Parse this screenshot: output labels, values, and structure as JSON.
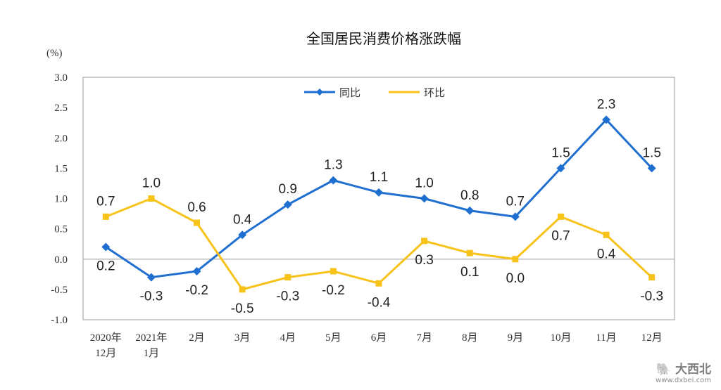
{
  "chart_data": {
    "type": "line",
    "title": "全国居民消费价格涨跌幅",
    "ylabel": "(%)",
    "ylim": [
      -1.0,
      3.0
    ],
    "yticks": [
      "3.0",
      "2.5",
      "2.0",
      "1.5",
      "1.0",
      "0.5",
      "0.0",
      "-0.5",
      "-1.0"
    ],
    "categories": [
      [
        "2020年",
        "12月"
      ],
      [
        "2021年",
        "1月"
      ],
      [
        "2月"
      ],
      [
        "3月"
      ],
      [
        "4月"
      ],
      [
        "5月"
      ],
      [
        "6月"
      ],
      [
        "7月"
      ],
      [
        "8月"
      ],
      [
        "9月"
      ],
      [
        "10月"
      ],
      [
        "11月"
      ],
      [
        "12月"
      ]
    ],
    "series": [
      {
        "name": "同比",
        "color": "#1f6fd1",
        "marker": "diamond",
        "values": [
          0.2,
          -0.3,
          -0.2,
          0.4,
          0.9,
          1.3,
          1.1,
          1.0,
          0.8,
          0.7,
          1.5,
          2.3,
          1.5
        ],
        "labels": [
          "0.2",
          "-0.3",
          "-0.2",
          "0.4",
          "0.9",
          "1.3",
          "1.1",
          "1.0",
          "0.8",
          "0.7",
          "1.5",
          "2.3",
          "1.5"
        ],
        "label_pos": [
          "below",
          "below",
          "below",
          "above",
          "above",
          "above",
          "above",
          "above",
          "above",
          "above",
          "above",
          "above",
          "above"
        ]
      },
      {
        "name": "环比",
        "color": "#f7c31a",
        "marker": "square",
        "values": [
          0.7,
          1.0,
          0.6,
          -0.5,
          -0.3,
          -0.2,
          -0.4,
          0.3,
          0.1,
          0.0,
          0.7,
          0.4,
          -0.3
        ],
        "labels": [
          "0.7",
          "1.0",
          "0.6",
          "-0.5",
          "-0.3",
          "-0.2",
          "-0.4",
          "0.3",
          "0.1",
          "0.0",
          "0.7",
          "0.4",
          "-0.3"
        ],
        "label_pos": [
          "above",
          "above",
          "above",
          "below",
          "below",
          "below",
          "below",
          "below",
          "below",
          "below",
          "below",
          "below",
          "below"
        ]
      }
    ],
    "legend": "top-center",
    "grid": false
  },
  "watermark": {
    "brand": "大西北",
    "url": "www.dxbei.com"
  }
}
